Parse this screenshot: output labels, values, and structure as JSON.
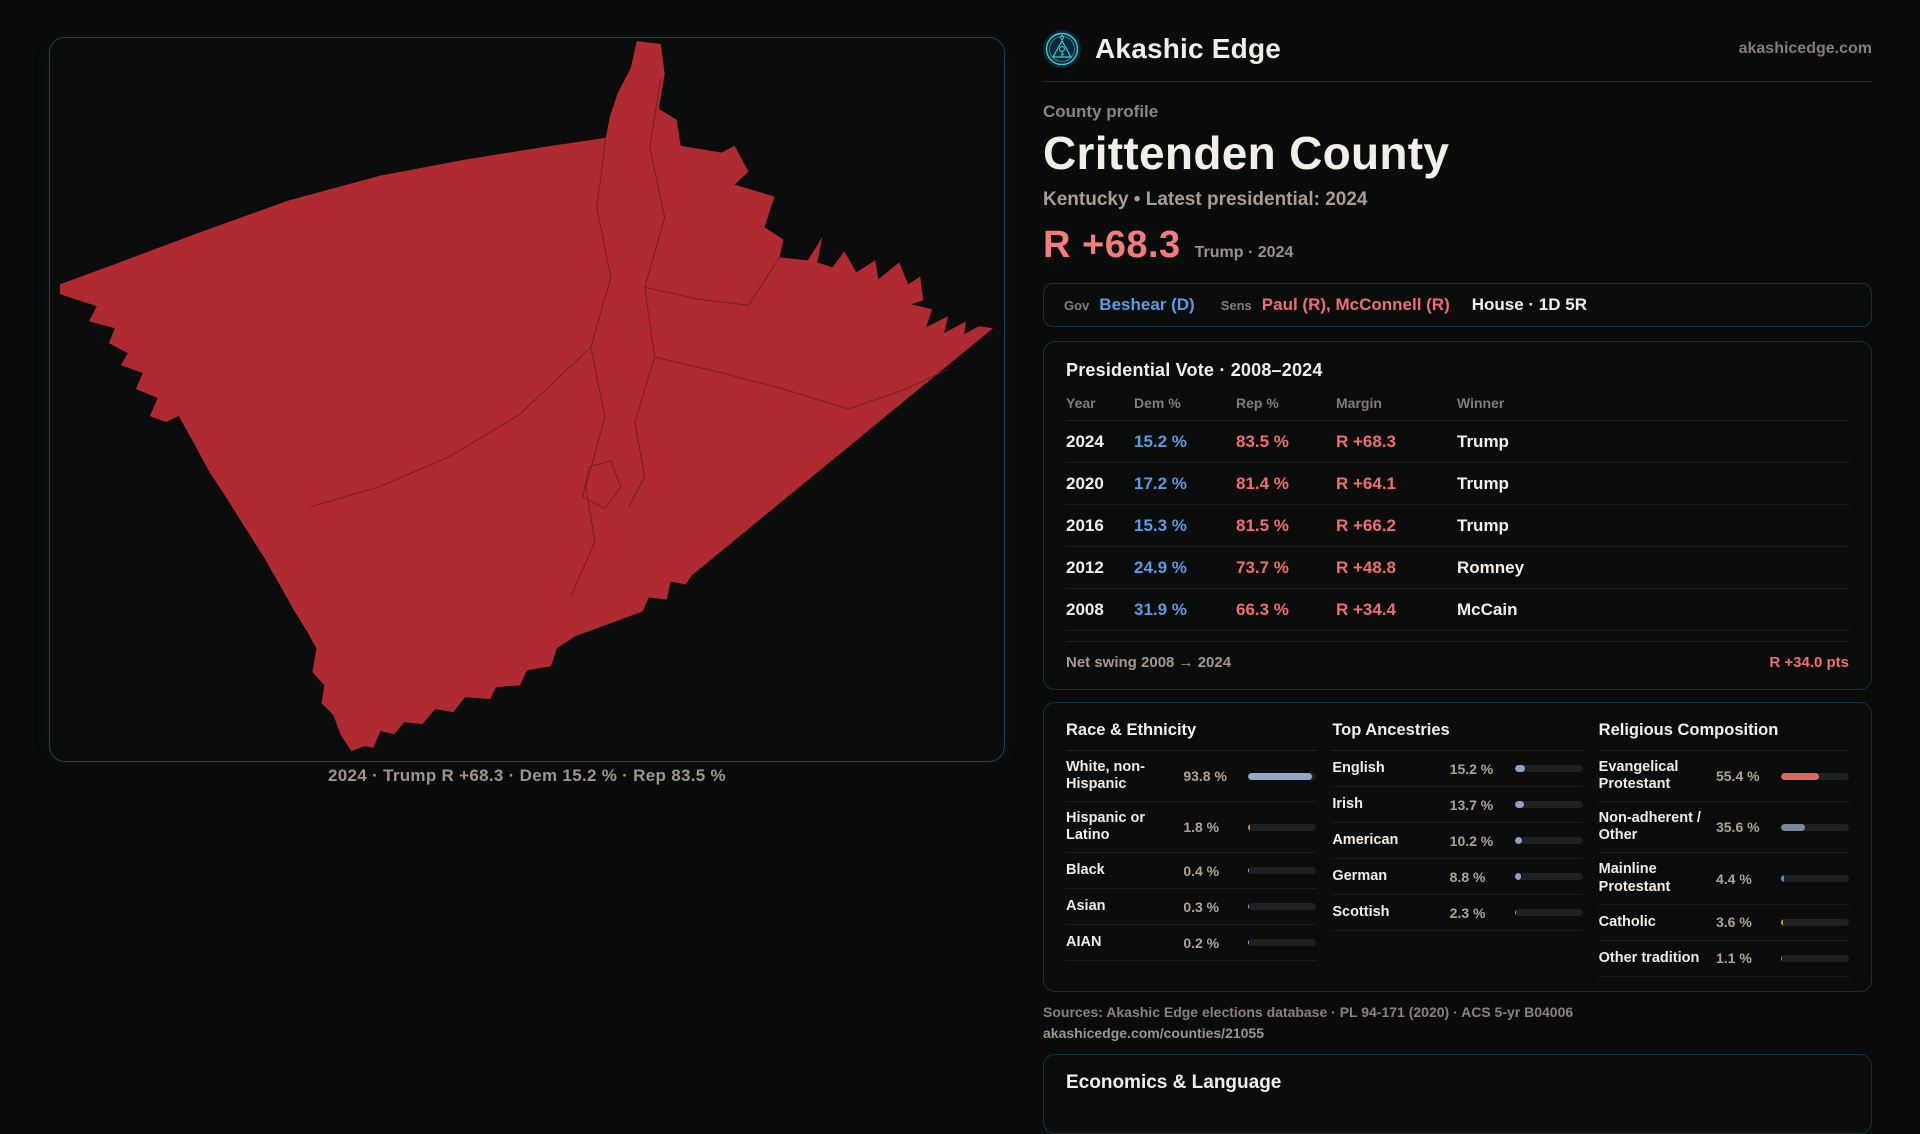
{
  "brand": {
    "name": "Akashic Edge",
    "domain": "akashicedge.com"
  },
  "profile": {
    "eyebrow": "County profile",
    "title": "Crittenden County",
    "subtitle": "Kentucky • Latest presidential: 2024",
    "margin_value": "R +68.3",
    "margin_context": "Trump · 2024"
  },
  "officials": {
    "gov_label": "Gov",
    "gov_value": "Beshear (D)",
    "sens_label": "Sens",
    "sens_value": "Paul (R), McConnell (R)",
    "house_value": "House · 1D 5R"
  },
  "map": {
    "fill": "#b02b31",
    "line_color": "#6e1b20",
    "caption": "2024 · Trump R +68.3 · Dem 15.2 % · Rep 83.5 %"
  },
  "presidential": {
    "title": "Presidential Vote · 2008–2024",
    "columns": [
      "Year",
      "Dem %",
      "Rep %",
      "Margin",
      "Winner"
    ],
    "rows": [
      {
        "year": "2024",
        "dem": "15.2 %",
        "rep": "83.5 %",
        "margin": "R +68.3",
        "winner": "Trump"
      },
      {
        "year": "2020",
        "dem": "17.2 %",
        "rep": "81.4 %",
        "margin": "R +64.1",
        "winner": "Trump"
      },
      {
        "year": "2016",
        "dem": "15.3 %",
        "rep": "81.5 %",
        "margin": "R +66.2",
        "winner": "Trump"
      },
      {
        "year": "2012",
        "dem": "24.9 %",
        "rep": "73.7 %",
        "margin": "R +48.8",
        "winner": "Romney"
      },
      {
        "year": "2008",
        "dem": "31.9 %",
        "rep": "66.3 %",
        "margin": "R +34.4",
        "winner": "McCain"
      }
    ],
    "net_swing_label": "Net swing 2008 → 2024",
    "net_swing_value": "R +34.0 pts"
  },
  "demographics": {
    "race": {
      "title": "Race & Ethnicity",
      "rows": [
        {
          "label": "White, non-Hispanic",
          "value": "93.8 %",
          "pct": 93.8,
          "color": "#96a6c8"
        },
        {
          "label": "Hispanic or Latino",
          "value": "1.8 %",
          "pct": 1.8,
          "color": "#d29a2f"
        },
        {
          "label": "Black",
          "value": "0.4 %",
          "pct": 0.4,
          "color": "#96a6c8"
        },
        {
          "label": "Asian",
          "value": "0.3 %",
          "pct": 0.3,
          "color": "#96a6c8"
        },
        {
          "label": "AIAN",
          "value": "0.2 %",
          "pct": 0.2,
          "color": "#96a6c8"
        }
      ]
    },
    "ancestries": {
      "title": "Top Ancestries",
      "rows": [
        {
          "label": "English",
          "value": "15.2 %",
          "pct": 15.2,
          "color": "#8fa3c4"
        },
        {
          "label": "Irish",
          "value": "13.7 %",
          "pct": 13.7,
          "color": "#8fa3c4"
        },
        {
          "label": "American",
          "value": "10.2 %",
          "pct": 10.2,
          "color": "#8fa3c4"
        },
        {
          "label": "German",
          "value": "8.8 %",
          "pct": 8.8,
          "color": "#8fa3c4"
        },
        {
          "label": "Scottish",
          "value": "2.3 %",
          "pct": 2.3,
          "color": "#8fa3c4"
        }
      ]
    },
    "religion": {
      "title": "Religious Composition",
      "rows": [
        {
          "label": "Evangelical Protestant",
          "value": "55.4 %",
          "pct": 55.4,
          "color": "#e06565"
        },
        {
          "label": "Non-adherent / Other",
          "value": "35.6 %",
          "pct": 35.6,
          "color": "#7b879d"
        },
        {
          "label": "Mainline Protestant",
          "value": "4.4 %",
          "pct": 4.4,
          "color": "#4a90e2"
        },
        {
          "label": "Catholic",
          "value": "3.6 %",
          "pct": 3.6,
          "color": "#dd9c2e"
        },
        {
          "label": "Other tradition",
          "value": "1.1 %",
          "pct": 1.1,
          "color": "#8b8f98"
        }
      ]
    }
  },
  "sources": {
    "line1": "Sources: Akashic Edge elections database · PL 94-171 (2020) · ACS 5-yr B04006",
    "line2": "akashicedge.com/counties/21055"
  },
  "economics": {
    "title": "Economics & Language"
  }
}
